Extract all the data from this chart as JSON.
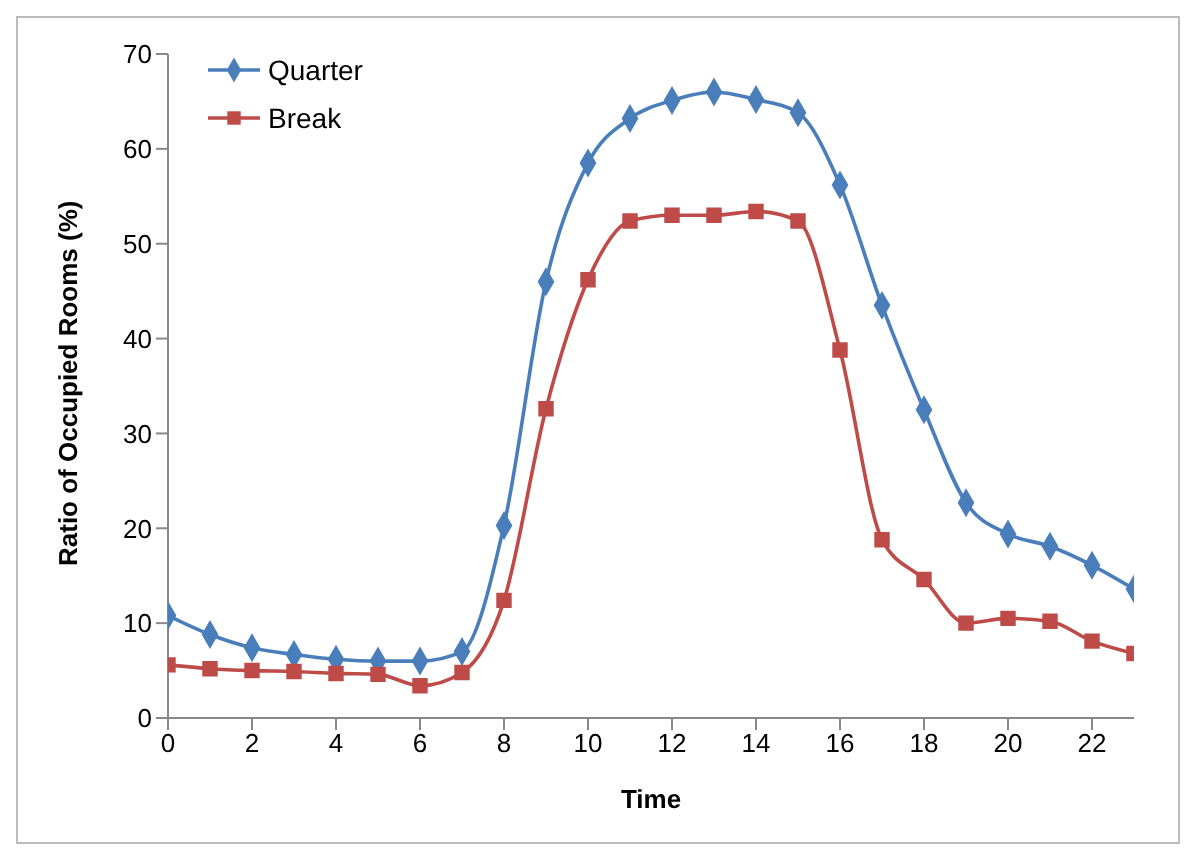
{
  "chart_data": {
    "type": "line",
    "xlabel": "Time",
    "ylabel": "Ratio of Occupied Rooms (%)",
    "x": [
      0,
      1,
      2,
      3,
      4,
      5,
      6,
      7,
      8,
      9,
      10,
      11,
      12,
      13,
      14,
      15,
      16,
      17,
      18,
      19,
      20,
      21,
      22,
      23
    ],
    "series": [
      {
        "name": "Quarter",
        "color": "#4a7ebb",
        "marker": "diamond",
        "values": [
          10.8,
          8.8,
          7.4,
          6.7,
          6.2,
          6.0,
          6.0,
          7.0,
          20.3,
          46.0,
          58.5,
          63.2,
          65.1,
          66.0,
          65.2,
          63.8,
          56.2,
          43.5,
          32.5,
          22.7,
          19.4,
          18.1,
          16.1,
          13.6
        ]
      },
      {
        "name": "Break",
        "color": "#be4b48",
        "marker": "square",
        "values": [
          5.6,
          5.2,
          5.0,
          4.9,
          4.7,
          4.6,
          3.4,
          4.8,
          12.4,
          32.6,
          46.2,
          52.4,
          53.0,
          53.0,
          53.4,
          52.4,
          38.8,
          18.8,
          14.6,
          10.0,
          10.5,
          10.2,
          8.1,
          6.8
        ]
      }
    ],
    "xlim": [
      0,
      23
    ],
    "xticks": [
      0,
      2,
      4,
      6,
      8,
      10,
      12,
      14,
      16,
      18,
      20,
      22
    ],
    "ylim": [
      0,
      70
    ],
    "yticks": [
      0,
      10,
      20,
      30,
      40,
      50,
      60,
      70
    ],
    "grid": false,
    "legend": "top left",
    "line_style": "solid"
  }
}
